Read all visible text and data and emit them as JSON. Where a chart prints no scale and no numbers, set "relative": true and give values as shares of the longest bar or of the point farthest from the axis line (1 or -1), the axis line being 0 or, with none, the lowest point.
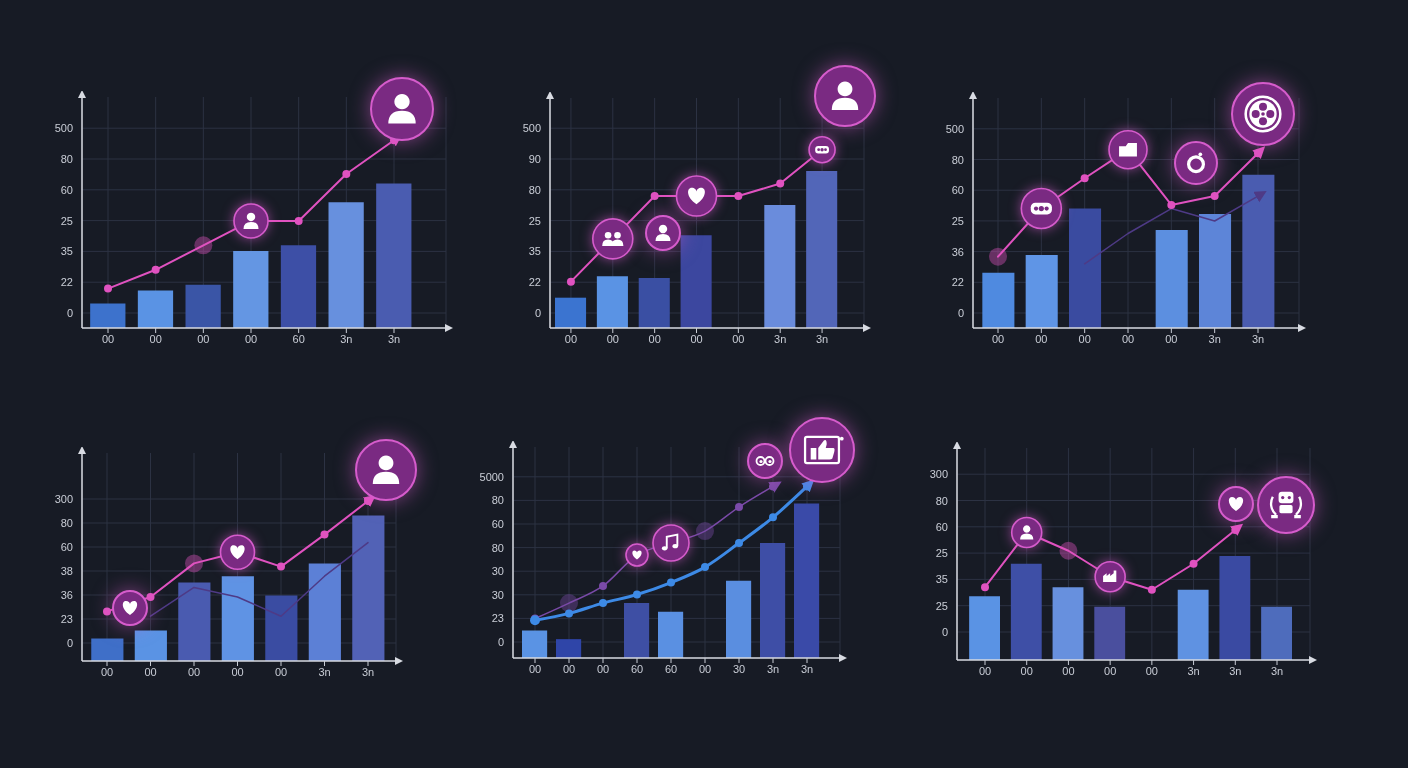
{
  "chart_data": [
    {
      "type": "bar",
      "relative": true,
      "categories": [
        "00",
        "00",
        "00",
        "00",
        "60",
        "3n",
        "3n"
      ],
      "series": [
        {
          "type": "bar",
          "colors": [
            "#3d72cc",
            "#5a93e4",
            "#3a55a6",
            "#6496e3",
            "#3d4fa6",
            "#6790de",
            "#4a5cb0"
          ],
          "values": [
            0.13,
            0.2,
            0.23,
            0.41,
            0.44,
            0.67,
            0.77
          ]
        },
        {
          "type": "line",
          "color": "#e052c0",
          "values": [
            0.21,
            0.31,
            0.44,
            0.57,
            0.57,
            0.82,
            1
          ]
        }
      ],
      "annotations": [
        "500",
        "80",
        "60",
        "25",
        "35",
        "22",
        "0"
      ],
      "grid": true,
      "marker": "circle"
    },
    {
      "type": "bar",
      "relative": true,
      "categories": [
        "00",
        "00",
        "00",
        "00",
        "00",
        "3n",
        "3n"
      ],
      "series": [
        {
          "type": "bar",
          "colors": [
            "#3b74d0",
            "#5a93e4",
            "#3a4fa3",
            "#3c479f",
            null,
            "#6a8cdc",
            "#5266b8"
          ],
          "values": [
            0.17,
            0.29,
            0.28,
            0.52,
            null,
            0.69,
            0.88
          ]
        },
        {
          "type": "line",
          "color": "#e052c0",
          "values": [
            0.26,
            0.5,
            0.74,
            0.74,
            0.74,
            0.81,
            1
          ]
        }
      ],
      "annotations": [
        "500",
        "90",
        "80",
        "25",
        "35",
        "22",
        "0"
      ],
      "grid": true,
      "marker": "circle"
    },
    {
      "type": "bar",
      "relative": true,
      "categories": [
        "00",
        "00",
        "00",
        "00",
        "00",
        "3n",
        "3n"
      ],
      "series": [
        {
          "type": "bar",
          "colors": [
            "#4f8ae0",
            "#5f95e6",
            "#3a4ba0",
            null,
            "#5c8fe0",
            "#5d85d8",
            "#4a5cb0"
          ],
          "values": [
            0.31,
            0.41,
            0.67,
            null,
            0.55,
            0.64,
            0.86
          ]
        },
        {
          "type": "line",
          "color": "#e052c0",
          "values": [
            0.4,
            0.67,
            0.84,
            1,
            0.69,
            0.74,
            0.98
          ]
        },
        {
          "type": "line",
          "color": "#4e3a86",
          "marker": "none",
          "values": [
            null,
            null,
            0.36,
            0.53,
            0.67,
            0.6,
            0.74
          ]
        }
      ],
      "annotations": [
        "500",
        "80",
        "60",
        "25",
        "36",
        "22",
        "0"
      ],
      "grid": true,
      "marker": "circle"
    },
    {
      "type": "bar",
      "relative": true,
      "categories": [
        "00",
        "00",
        "00",
        "00",
        "00",
        "3n",
        "3n"
      ],
      "series": [
        {
          "type": "bar",
          "colors": [
            "#3f6fc8",
            "#5a93e4",
            "#4a5bb0",
            "#5f93e4",
            "#3a4ca2",
            "#5c80d6",
            "#5262b6"
          ],
          "values": [
            0.14,
            0.19,
            0.49,
            0.53,
            0.41,
            0.61,
            0.91
          ]
        },
        {
          "type": "line",
          "color": "#e052c0",
          "values": [
            0.31,
            0.4,
            0.61,
            0.68,
            0.59,
            0.79,
            1
          ]
        },
        {
          "type": "line",
          "color": "#4e3a86",
          "marker": "none",
          "values": [
            null,
            0.28,
            0.46,
            0.4,
            0.28,
            0.53,
            0.74
          ]
        }
      ],
      "annotations": [
        "300",
        "80",
        "60",
        "38",
        "36",
        "23",
        "0"
      ],
      "grid": true,
      "marker": "circle"
    },
    {
      "type": "bar",
      "relative": true,
      "categories": [
        "00",
        "00",
        "00",
        "60",
        "60",
        "00",
        "30",
        "3n",
        "3n"
      ],
      "series": [
        {
          "type": "bar",
          "colors": [
            "#5a93e4",
            "#2f45a8",
            null,
            "#3e4fa4",
            "#5a90e2",
            null,
            "#5a8ee0",
            "#3e4ea6",
            "#3a4aa8"
          ],
          "values": [
            0.16,
            0.11,
            null,
            0.32,
            0.27,
            null,
            0.45,
            0.67,
            0.9
          ]
        },
        {
          "type": "line",
          "color": "#7a4aa8",
          "values": [
            0.23,
            0.32,
            0.42,
            0.6,
            0.67,
            0.74,
            0.88,
            1,
            null
          ]
        },
        {
          "type": "line",
          "color": "#3d8ae6",
          "values": [
            0.22,
            0.26,
            0.32,
            0.37,
            0.44,
            0.53,
            0.67,
            0.82,
            1
          ]
        }
      ],
      "annotations": [
        "5000",
        "80",
        "60",
        "80",
        "30",
        "30",
        "23",
        "0"
      ],
      "grid": true,
      "marker": "circle"
    },
    {
      "type": "bar",
      "relative": true,
      "categories": [
        "00",
        "00",
        "00",
        "00",
        "00",
        "3n",
        "3n",
        "3n"
      ],
      "series": [
        {
          "type": "bar",
          "colors": [
            "#5a93e4",
            "#3e4fa6",
            "#6790de",
            "#4a4f9e",
            null,
            "#5f92e2",
            "#3a4aa2",
            "#4e6cbc"
          ],
          "values": [
            0.49,
            0.74,
            0.56,
            0.41,
            null,
            0.54,
            0.8,
            0.41
          ]
        },
        {
          "type": "line",
          "color": "#e052c0",
          "values": [
            0.56,
            0.98,
            0.84,
            0.64,
            0.54,
            0.74,
            1,
            null
          ]
        }
      ],
      "annotations": [
        "300",
        "80",
        "60",
        "25",
        "35",
        "25",
        "0"
      ],
      "grid": true,
      "marker": "circle"
    }
  ]
}
